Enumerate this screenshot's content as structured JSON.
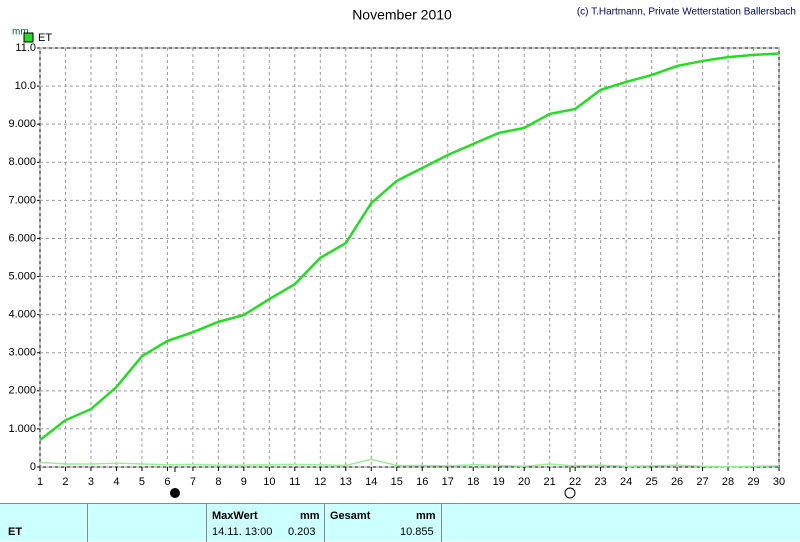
{
  "chart_data": {
    "type": "line",
    "title": "November 2010",
    "credit": "(c) T.Hartmann, Private Wetterstation Ballersbach",
    "y_unit": "mm",
    "x": [
      1,
      2,
      3,
      4,
      5,
      6,
      7,
      8,
      9,
      10,
      11,
      12,
      13,
      14,
      15,
      16,
      17,
      18,
      19,
      20,
      21,
      22,
      23,
      24,
      25,
      26,
      27,
      28,
      29,
      30
    ],
    "series": [
      {
        "name": "ET",
        "color": "#22dd22",
        "values": [
          0.71,
          1.23,
          1.52,
          2.1,
          2.91,
          3.31,
          3.54,
          3.81,
          3.99,
          4.41,
          4.8,
          5.49,
          5.88,
          6.93,
          7.51,
          7.85,
          8.19,
          8.48,
          8.77,
          8.9,
          9.27,
          9.4,
          9.9,
          10.11,
          10.29,
          10.53,
          10.66,
          10.76,
          10.82,
          10.855
        ]
      },
      {
        "color": "#99ee99",
        "values": [
          0.12,
          0.08,
          0.08,
          0.1,
          0.08,
          0.06,
          0.07,
          0.05,
          0.05,
          0.06,
          0.07,
          0.06,
          0.04,
          0.203,
          0.04,
          0.04,
          0.03,
          0.06,
          0.04,
          0.02,
          0.08,
          0.03,
          0.05,
          0.02,
          0.03,
          0.05,
          0.02,
          0.01,
          0.02,
          0.03
        ]
      }
    ],
    "xlim": [
      1,
      30
    ],
    "ylim": [
      0,
      11
    ],
    "xticks": [
      1,
      2,
      3,
      4,
      5,
      6,
      7,
      8,
      9,
      10,
      11,
      12,
      13,
      14,
      15,
      16,
      17,
      18,
      19,
      20,
      21,
      22,
      23,
      24,
      25,
      26,
      27,
      28,
      29,
      30
    ],
    "yticks": [
      0,
      {
        "value": 1,
        "label": "1.000"
      },
      {
        "value": 2,
        "label": "2.000"
      },
      {
        "value": 3,
        "label": "3.000"
      },
      {
        "value": 4,
        "label": "4.000"
      },
      {
        "value": 5,
        "label": "5.000"
      },
      {
        "value": 6,
        "label": "6.000"
      },
      {
        "value": 7,
        "label": "7.000"
      },
      {
        "value": 8,
        "label": "8.000"
      },
      {
        "value": 9,
        "label": "9.000"
      },
      {
        "value": 10,
        "label": "10.0"
      },
      {
        "value": 11,
        "label": "11.0"
      }
    ],
    "grid": true,
    "legend": "top-left"
  },
  "table": {
    "headers": [
      "MaxWert",
      "mm",
      "Gesamt",
      "mm"
    ],
    "row": {
      "label": "ET",
      "max_time": "14.11. 13:00",
      "max_value": 0.203,
      "total": 10.855
    }
  }
}
